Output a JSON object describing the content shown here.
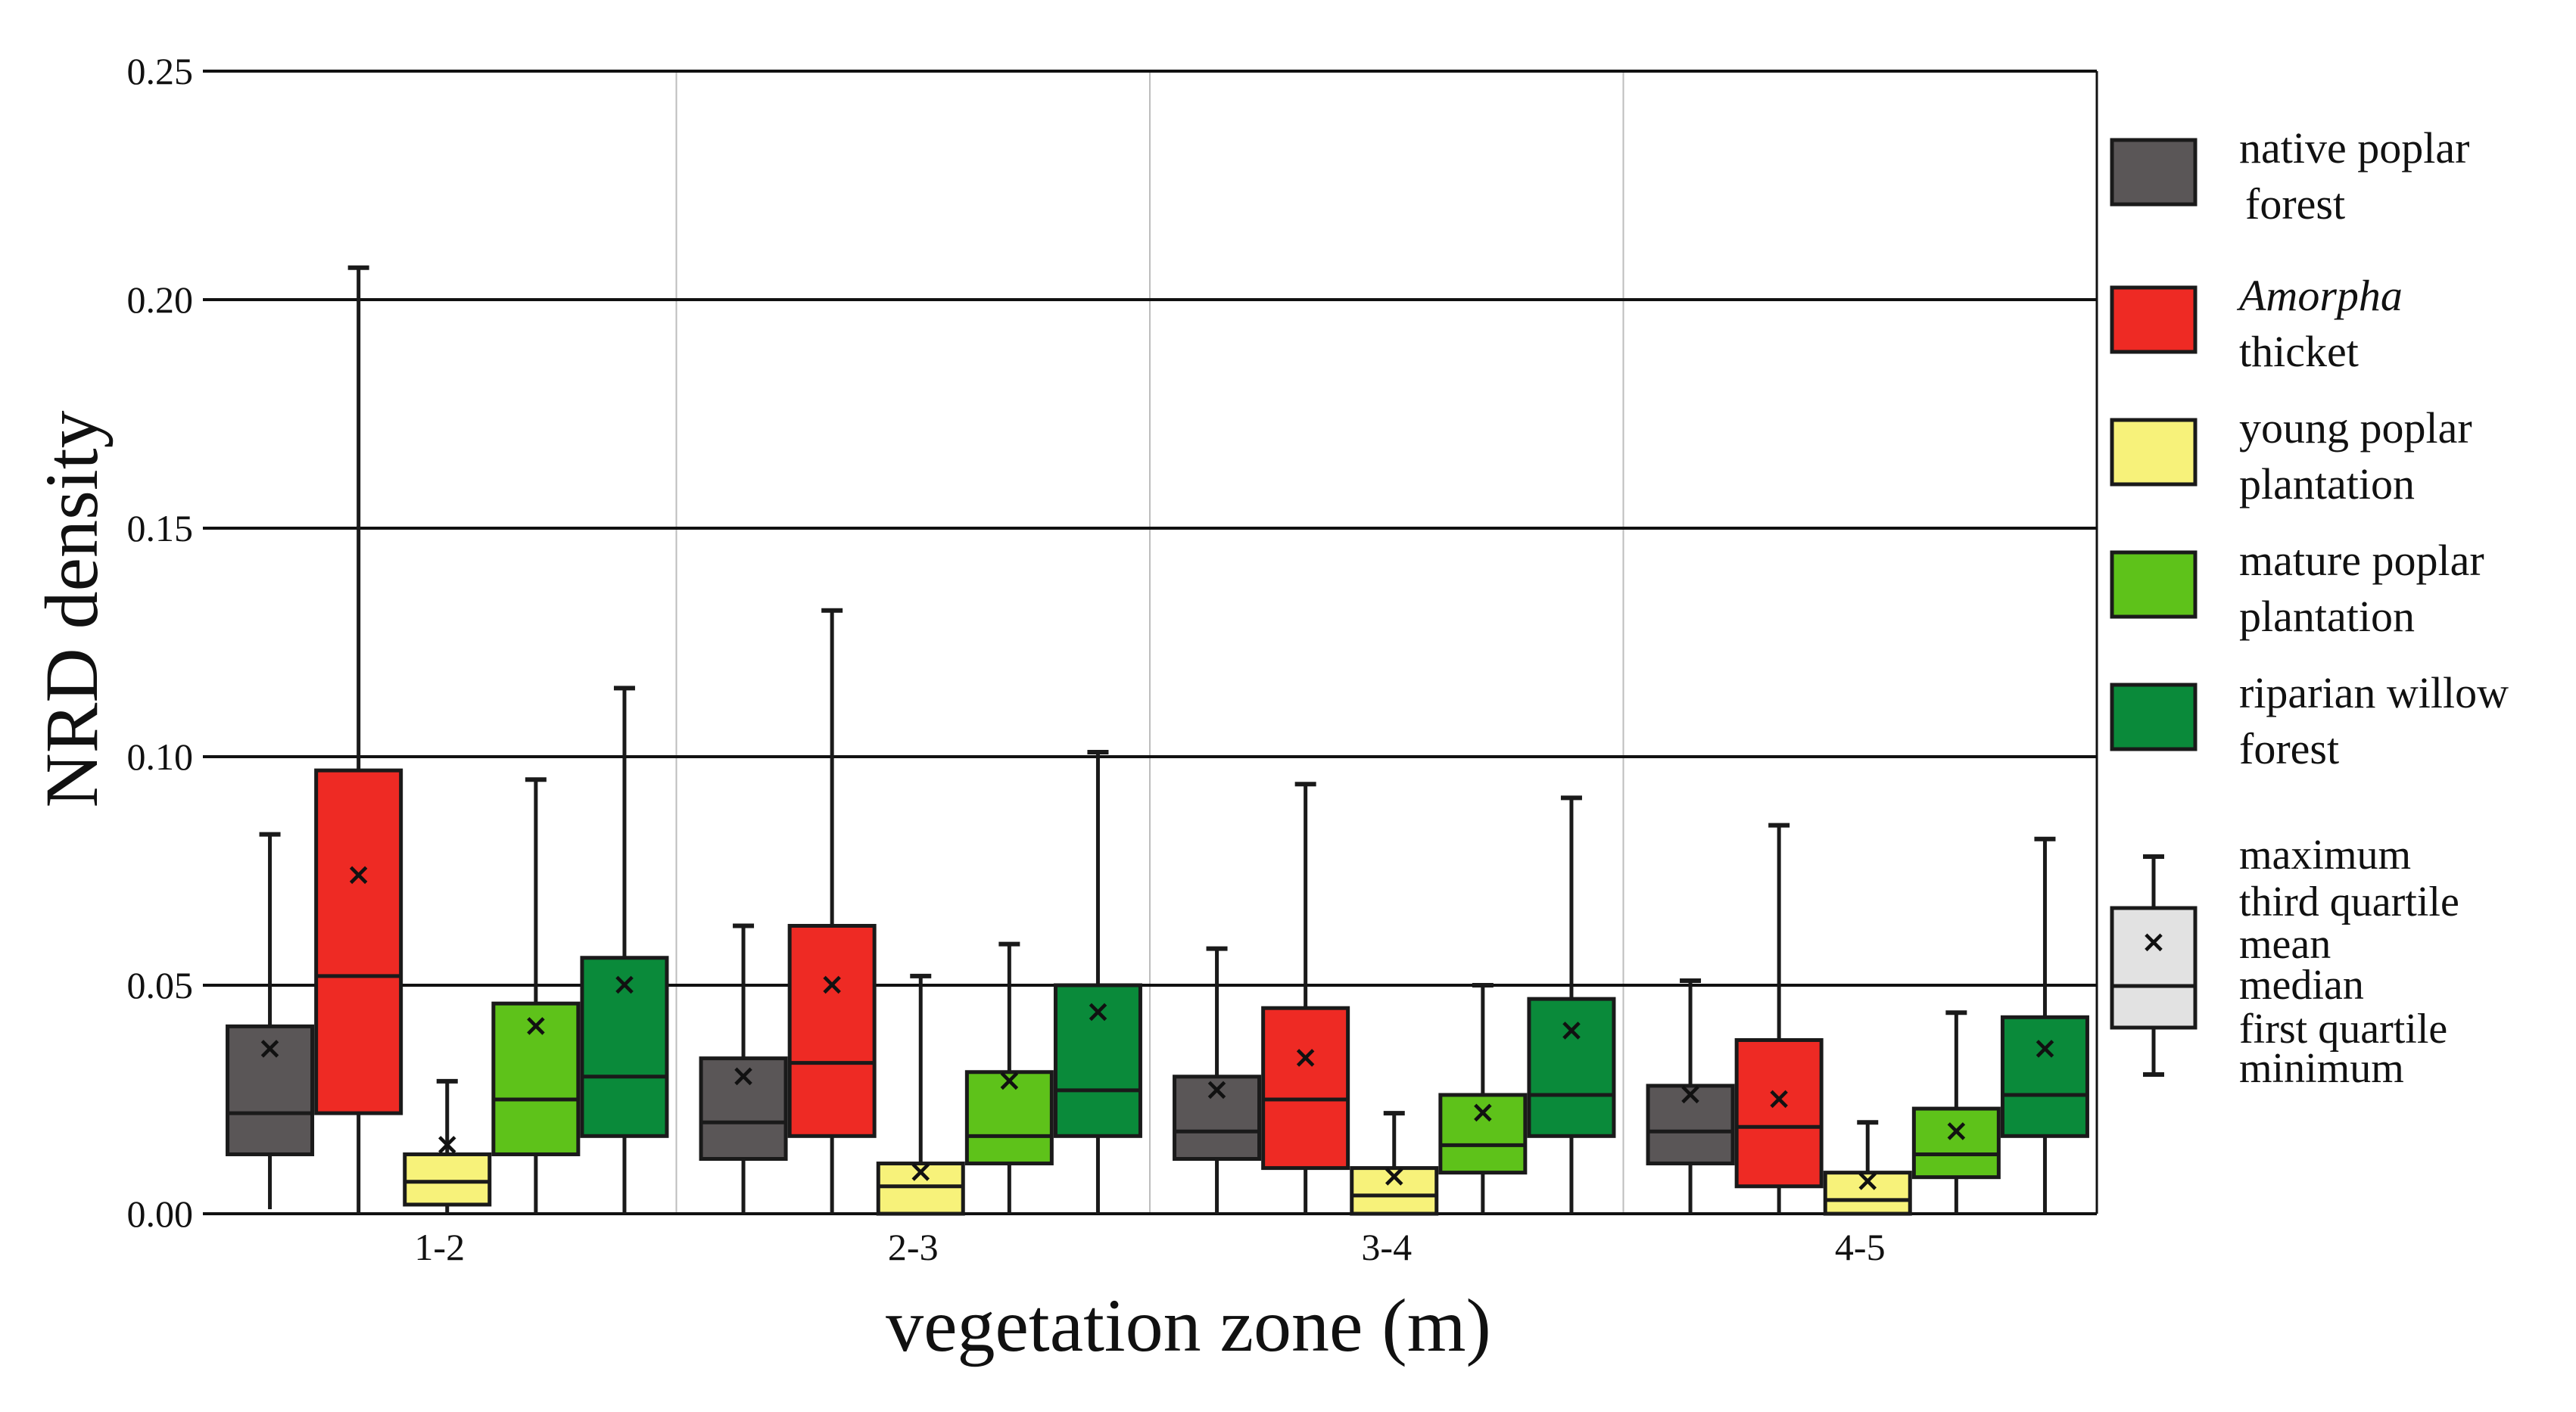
{
  "chart_data": {
    "type": "boxplot",
    "xlabel": "vegetation zone (m)",
    "ylabel": "NRD density",
    "ylim": [
      0,
      0.25
    ],
    "yticks": [
      "0.00",
      "0.05",
      "0.10",
      "0.15",
      "0.20",
      "0.25"
    ],
    "ytick_values": [
      0,
      0.05,
      0.1,
      0.15,
      0.2,
      0.25
    ],
    "categories": [
      "1-2",
      "2-3",
      "3-4",
      "4-5"
    ],
    "grid": "horizontal",
    "legend_position": "right",
    "series": [
      {
        "name": "native poplar forest",
        "label_lines": [
          "native poplar",
          "forest"
        ],
        "color": "#5a5657",
        "boxes": [
          {
            "min": 0.001,
            "q1": 0.013,
            "median": 0.022,
            "q3": 0.041,
            "max": 0.083,
            "mean": 0.036
          },
          {
            "min": 0.0,
            "q1": 0.012,
            "median": 0.02,
            "q3": 0.034,
            "max": 0.063,
            "mean": 0.03
          },
          {
            "min": 0.0,
            "q1": 0.012,
            "median": 0.018,
            "q3": 0.03,
            "max": 0.058,
            "mean": 0.027
          },
          {
            "min": 0.0,
            "q1": 0.011,
            "median": 0.018,
            "q3": 0.028,
            "max": 0.051,
            "mean": 0.026
          }
        ]
      },
      {
        "name": "Amorpha thicket",
        "label_lines": [
          "Amorpha",
          "thicket"
        ],
        "italic_first_line": true,
        "color": "#ee2a24",
        "boxes": [
          {
            "min": 0.0,
            "q1": 0.022,
            "median": 0.052,
            "q3": 0.097,
            "max": 0.207,
            "mean": 0.074
          },
          {
            "min": 0.0,
            "q1": 0.017,
            "median": 0.033,
            "q3": 0.063,
            "max": 0.132,
            "mean": 0.05
          },
          {
            "min": 0.0,
            "q1": 0.01,
            "median": 0.025,
            "q3": 0.045,
            "max": 0.094,
            "mean": 0.034
          },
          {
            "min": 0.0,
            "q1": 0.006,
            "median": 0.019,
            "q3": 0.038,
            "max": 0.085,
            "mean": 0.025
          }
        ]
      },
      {
        "name": "young poplar plantation",
        "label_lines": [
          "young poplar",
          "plantation"
        ],
        "color": "#f7f27a",
        "boxes": [
          {
            "min": 0.0,
            "q1": 0.002,
            "median": 0.007,
            "q3": 0.013,
            "max": 0.029,
            "mean": 0.015
          },
          {
            "min": 0.0,
            "q1": 0.0,
            "median": 0.006,
            "q3": 0.011,
            "max": 0.052,
            "mean": 0.009
          },
          {
            "min": 0.0,
            "q1": 0.0,
            "median": 0.004,
            "q3": 0.01,
            "max": 0.022,
            "mean": 0.008
          },
          {
            "min": 0.0,
            "q1": 0.0,
            "median": 0.003,
            "q3": 0.009,
            "max": 0.02,
            "mean": 0.007
          }
        ]
      },
      {
        "name": "mature poplar plantation",
        "label_lines": [
          "mature poplar",
          "plantation"
        ],
        "color": "#5ec21a",
        "boxes": [
          {
            "min": 0.0,
            "q1": 0.013,
            "median": 0.025,
            "q3": 0.046,
            "max": 0.095,
            "mean": 0.041
          },
          {
            "min": 0.0,
            "q1": 0.011,
            "median": 0.017,
            "q3": 0.031,
            "max": 0.059,
            "mean": 0.029
          },
          {
            "min": 0.0,
            "q1": 0.009,
            "median": 0.015,
            "q3": 0.026,
            "max": 0.05,
            "mean": 0.022
          },
          {
            "min": 0.0,
            "q1": 0.008,
            "median": 0.013,
            "q3": 0.023,
            "max": 0.044,
            "mean": 0.018
          }
        ]
      },
      {
        "name": "riparian willow forest",
        "label_lines": [
          "riparian willow",
          "forest"
        ],
        "color": "#0a8a3a",
        "boxes": [
          {
            "min": 0.0,
            "q1": 0.017,
            "median": 0.03,
            "q3": 0.056,
            "max": 0.115,
            "mean": 0.05
          },
          {
            "min": 0.0,
            "q1": 0.017,
            "median": 0.027,
            "q3": 0.05,
            "max": 0.101,
            "mean": 0.044
          },
          {
            "min": 0.0,
            "q1": 0.017,
            "median": 0.026,
            "q3": 0.047,
            "max": 0.091,
            "mean": 0.04
          },
          {
            "min": 0.0,
            "q1": 0.017,
            "median": 0.026,
            "q3": 0.043,
            "max": 0.082,
            "mean": 0.036
          }
        ]
      }
    ],
    "key": {
      "color": "#e2e2e2",
      "mean_marker": "×",
      "labels": [
        "maximum",
        "third quartile",
        "mean",
        "median",
        "first quartile",
        "minimum"
      ]
    }
  }
}
